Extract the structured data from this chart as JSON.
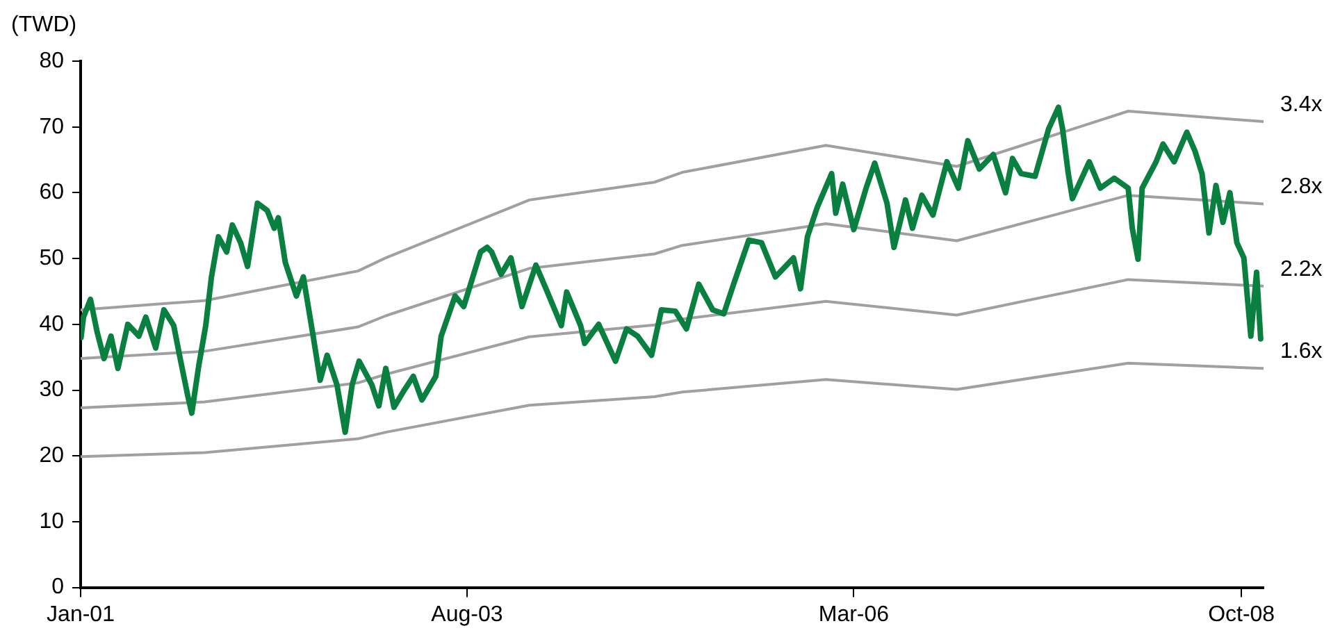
{
  "chart_data": {
    "type": "line",
    "ylabel": "(TWD)",
    "ylim": [
      0,
      80
    ],
    "yticks": [
      0,
      10,
      20,
      30,
      40,
      50,
      60,
      70,
      80
    ],
    "xlim": [
      "2001-01-01",
      "2008-11-24"
    ],
    "xticks": [
      {
        "value": "2001-01-01",
        "label": "Jan-01"
      },
      {
        "value": "2003-08-01",
        "label": "Aug-03"
      },
      {
        "value": "2006-03-01",
        "label": "Mar-06"
      },
      {
        "value": "2008-10-01",
        "label": "Oct-08"
      }
    ],
    "grid": false,
    "legend": false,
    "marker": "none",
    "line_style": "solid",
    "series": [
      {
        "name": "3.4x",
        "color": "#a0a0a0",
        "x": [
          "2001-01-01",
          "2001-10-30",
          "2002-11-08",
          "2003-01-15",
          "2003-12-31",
          "2004-10-31",
          "2005-01-07",
          "2005-12-23",
          "2006-11-07",
          "2007-12-30",
          "2008-11-24"
        ],
        "values": [
          42.2,
          43.6,
          48.1,
          50.1,
          58.9,
          61.6,
          63.1,
          67.2,
          64.0,
          72.4,
          70.8
        ]
      },
      {
        "name": "2.8x",
        "color": "#a0a0a0",
        "x": [
          "2001-01-01",
          "2001-10-30",
          "2002-11-08",
          "2003-01-15",
          "2003-12-31",
          "2004-10-31",
          "2005-01-07",
          "2005-12-23",
          "2006-11-07",
          "2007-12-30",
          "2008-11-24"
        ],
        "values": [
          34.8,
          35.9,
          39.6,
          41.3,
          48.5,
          50.7,
          52.0,
          55.3,
          52.7,
          59.6,
          58.3
        ]
      },
      {
        "name": "2.2x",
        "color": "#a0a0a0",
        "x": [
          "2001-01-01",
          "2001-10-30",
          "2002-11-08",
          "2003-01-15",
          "2003-12-31",
          "2004-10-31",
          "2005-01-07",
          "2005-12-23",
          "2006-11-07",
          "2007-12-30",
          "2008-11-24"
        ],
        "values": [
          27.3,
          28.2,
          31.1,
          32.4,
          38.1,
          39.9,
          40.8,
          43.5,
          41.4,
          46.8,
          45.8
        ]
      },
      {
        "name": "1.6x",
        "color": "#a0a0a0",
        "x": [
          "2001-01-01",
          "2001-10-30",
          "2002-11-08",
          "2003-01-15",
          "2003-12-31",
          "2004-10-31",
          "2005-01-07",
          "2005-12-23",
          "2006-11-07",
          "2007-12-30",
          "2008-11-24"
        ],
        "values": [
          19.9,
          20.5,
          22.6,
          23.6,
          27.7,
          29.0,
          29.7,
          31.6,
          30.1,
          34.1,
          33.3
        ]
      },
      {
        "color": "#0a8040",
        "x": [
          "2001-01-02",
          "2001-01-08",
          "2001-01-25",
          "2001-02-10",
          "2001-02-27",
          "2001-03-16",
          "2001-04-02",
          "2001-04-26",
          "2001-05-23",
          "2001-06-09",
          "2001-07-03",
          "2001-07-23",
          "2001-08-16",
          "2001-09-02",
          "2001-09-19",
          "2001-09-29",
          "2001-10-16",
          "2001-11-02",
          "2001-11-16",
          "2001-12-03",
          "2001-12-23",
          "2002-01-06",
          "2002-01-26",
          "2002-02-12",
          "2002-03-08",
          "2002-04-01",
          "2002-04-18",
          "2002-04-28",
          "2002-05-15",
          "2002-06-11",
          "2002-06-28",
          "2002-07-22",
          "2002-08-08",
          "2002-08-25",
          "2002-09-18",
          "2002-10-08",
          "2002-10-25",
          "2002-11-11",
          "2002-12-12",
          "2002-12-29",
          "2003-01-15",
          "2003-02-04",
          "2003-02-28",
          "2003-03-23",
          "2003-04-13",
          "2003-05-17",
          "2003-05-30",
          "2003-07-03",
          "2003-07-24",
          "2003-09-03",
          "2003-09-19",
          "2003-09-30",
          "2003-10-23",
          "2003-11-16",
          "2003-12-13",
          "2004-01-16",
          "2004-02-13",
          "2004-03-18",
          "2004-03-31",
          "2004-05-04",
          "2004-05-14",
          "2004-06-17",
          "2004-07-28",
          "2004-08-24",
          "2004-09-20",
          "2004-10-24",
          "2004-11-17",
          "2004-12-21",
          "2005-01-17",
          "2005-02-16",
          "2005-03-22",
          "2005-04-18",
          "2005-05-12",
          "2005-06-18",
          "2005-07-19",
          "2005-08-22",
          "2005-10-05",
          "2005-10-22",
          "2005-11-08",
          "2005-12-02",
          "2006-01-06",
          "2006-01-16",
          "2006-02-02",
          "2006-03-01",
          "2006-03-31",
          "2006-04-21",
          "2006-05-21",
          "2006-06-07",
          "2006-07-05",
          "2006-07-22",
          "2006-08-14",
          "2006-09-10",
          "2006-10-14",
          "2006-11-11",
          "2006-12-04",
          "2007-01-01",
          "2007-02-04",
          "2007-03-06",
          "2007-03-23",
          "2007-04-13",
          "2007-05-17",
          "2007-06-19",
          "2007-07-13",
          "2007-07-23",
          "2007-08-06",
          "2007-08-16",
          "2007-09-26",
          "2007-10-23",
          "2007-11-26",
          "2007-12-30",
          "2008-01-09",
          "2008-01-23",
          "2008-02-02",
          "2008-03-07",
          "2008-03-24",
          "2008-04-20",
          "2008-05-21",
          "2008-06-10",
          "2008-06-27",
          "2008-07-14",
          "2008-07-31",
          "2008-08-17",
          "2008-09-03",
          "2008-09-20",
          "2008-10-07",
          "2008-10-24",
          "2008-11-07",
          "2008-11-17"
        ],
        "values": [
          38.0,
          41.1,
          43.8,
          38.9,
          34.8,
          38.2,
          33.3,
          40.0,
          38.2,
          41.1,
          36.4,
          42.2,
          39.8,
          34.4,
          29.2,
          26.5,
          33.7,
          39.8,
          47.2,
          53.3,
          51.0,
          55.1,
          52.4,
          48.8,
          58.4,
          57.3,
          54.6,
          56.2,
          49.4,
          44.3,
          47.2,
          38.2,
          31.5,
          35.3,
          30.8,
          23.6,
          30.8,
          34.4,
          30.8,
          27.6,
          33.3,
          27.4,
          29.9,
          32.1,
          28.5,
          32.1,
          38.2,
          44.3,
          42.7,
          51.0,
          51.7,
          51.0,
          47.6,
          50.1,
          42.7,
          49.0,
          44.9,
          39.8,
          44.9,
          39.8,
          37.1,
          40.0,
          34.4,
          39.3,
          38.2,
          35.3,
          42.2,
          42.0,
          39.3,
          46.1,
          42.2,
          41.6,
          46.1,
          52.8,
          52.4,
          47.2,
          50.1,
          45.4,
          53.3,
          57.8,
          62.9,
          56.9,
          61.3,
          54.4,
          60.7,
          64.5,
          58.4,
          51.7,
          58.9,
          54.6,
          59.6,
          56.6,
          64.7,
          60.7,
          67.9,
          63.6,
          65.8,
          60.0,
          65.2,
          62.9,
          62.5,
          69.7,
          73.0,
          69.7,
          62.9,
          59.1,
          64.7,
          60.7,
          62.2,
          60.7,
          54.6,
          49.9,
          60.7,
          64.7,
          67.4,
          64.7,
          69.2,
          66.3,
          62.9,
          53.9,
          61.1,
          55.5,
          60.0,
          52.4,
          50.1,
          38.2,
          47.9,
          37.8
        ]
      }
    ]
  }
}
